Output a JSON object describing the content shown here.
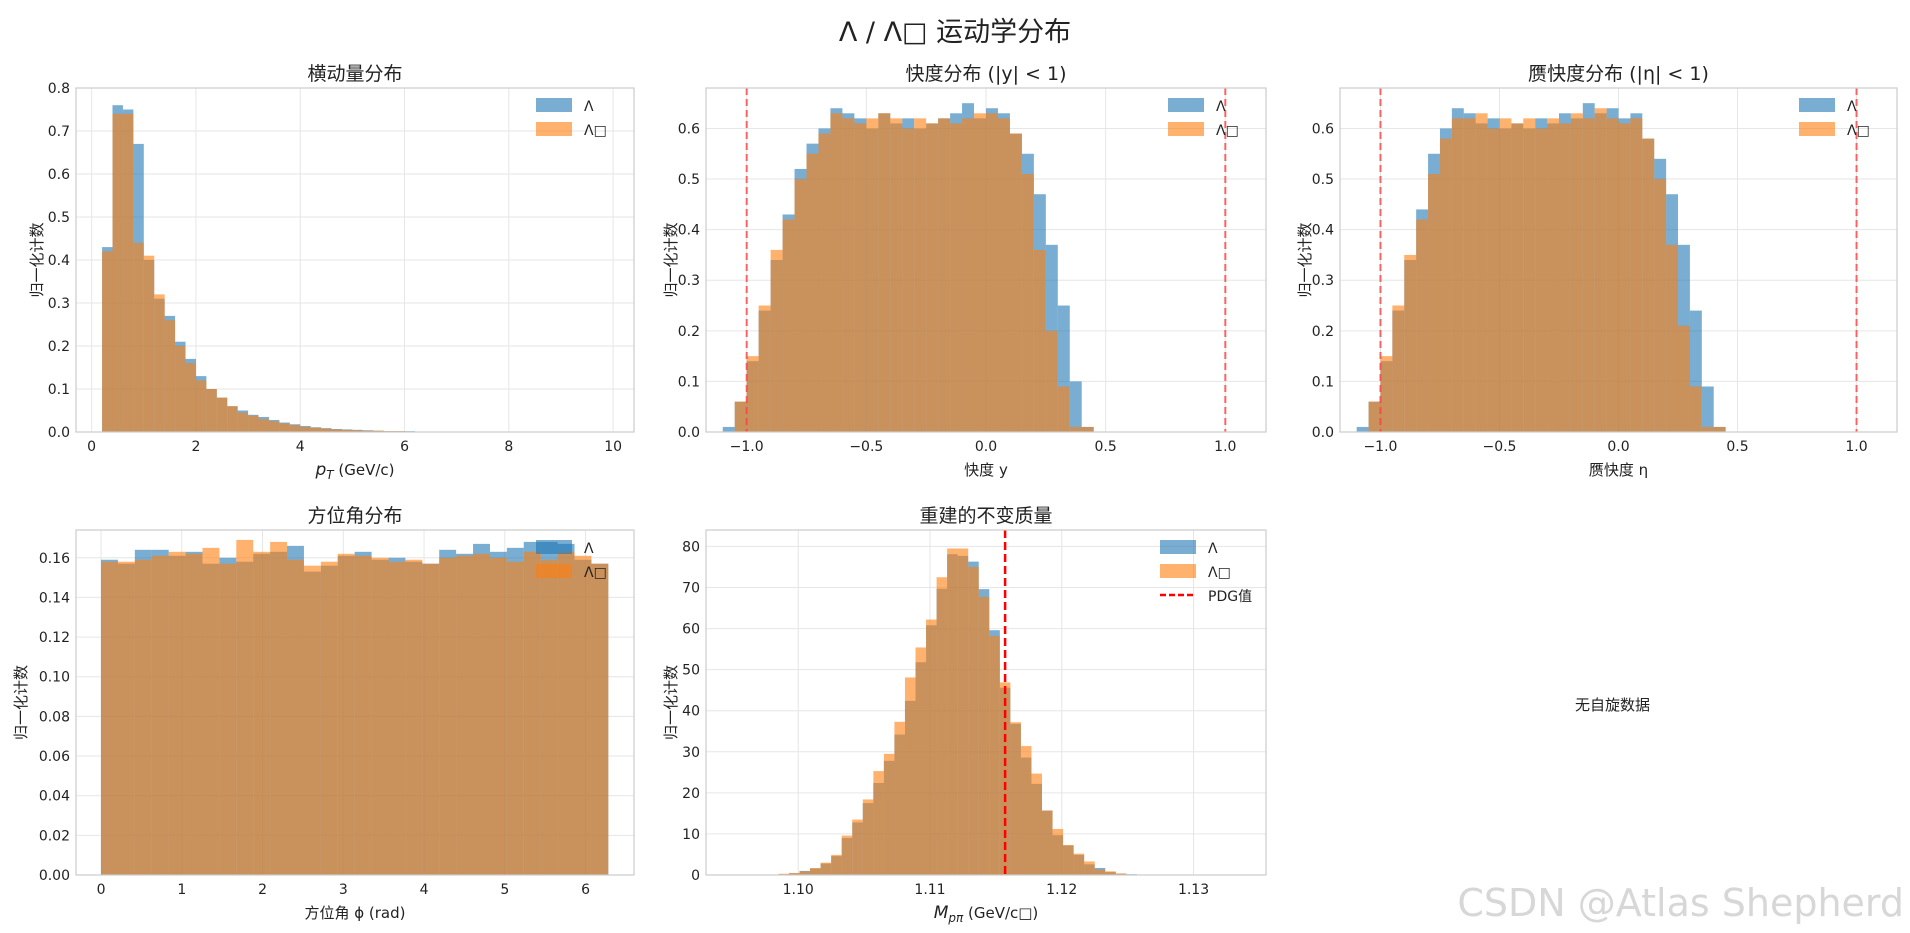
{
  "title": "Λ / Λ□ 运动学分布",
  "watermark": "CSDN @Atlas Shepherd",
  "empty_panel_text": "无自旋数据",
  "colors": {
    "lambda": "#1f77b4",
    "antilambda": "#ff7f0e",
    "pdg": "#ff0000",
    "cut": "#ff4040"
  },
  "chart_data": [
    {
      "id": "pt",
      "type": "bar",
      "title": "横动量分布",
      "xlabel": "p_T (GeV/c)",
      "ylabel": "归一化计数",
      "xlim": [
        -0.3,
        10.4
      ],
      "ylim": [
        0,
        0.8
      ],
      "xticks": [
        0,
        2,
        4,
        6,
        8,
        10
      ],
      "yticks": [
        0.0,
        0.1,
        0.2,
        0.3,
        0.4,
        0.5,
        0.6,
        0.7,
        0.8
      ],
      "ytick_labels": [
        "0.0",
        "0.1",
        "0.2",
        "0.3",
        "0.4",
        "0.5",
        "0.6",
        "0.7",
        "0.8"
      ],
      "bin_start": 0.2,
      "bin_width": 0.2,
      "legend": [
        "Λ",
        "Λ□"
      ],
      "series": [
        {
          "name": "Λ",
          "values": [
            0.43,
            0.76,
            0.75,
            0.67,
            0.4,
            0.31,
            0.27,
            0.21,
            0.17,
            0.13,
            0.1,
            0.08,
            0.06,
            0.05,
            0.04,
            0.035,
            0.028,
            0.022,
            0.018,
            0.014,
            0.011,
            0.009,
            0.007,
            0.006,
            0.005,
            0.004,
            0.003,
            0.002,
            0.002,
            0.002
          ]
        },
        {
          "name": "Λ□",
          "values": [
            0.42,
            0.74,
            0.74,
            0.44,
            0.41,
            0.32,
            0.26,
            0.2,
            0.16,
            0.12,
            0.1,
            0.08,
            0.06,
            0.045,
            0.038,
            0.03,
            0.025,
            0.02,
            0.016,
            0.012,
            0.01,
            0.008,
            0.006,
            0.005,
            0.004,
            0.003,
            0.003,
            0.002,
            0.002,
            0.001
          ]
        }
      ]
    },
    {
      "id": "y",
      "type": "bar",
      "title": "快度分布 (|y| < 1)",
      "xlabel": "快度 y",
      "ylabel": "归一化计数",
      "xlim": [
        -1.17,
        1.17
      ],
      "ylim": [
        0,
        0.68
      ],
      "xticks": [
        -1.0,
        -0.5,
        0.0,
        0.5,
        1.0
      ],
      "xtick_labels": [
        "−1.0",
        "−0.5",
        "0.0",
        "0.5",
        "1.0"
      ],
      "yticks": [
        0.0,
        0.1,
        0.2,
        0.3,
        0.4,
        0.5,
        0.6
      ],
      "ytick_labels": [
        "0.0",
        "0.1",
        "0.2",
        "0.3",
        "0.4",
        "0.5",
        "0.6"
      ],
      "bin_start": -1.1,
      "bin_width": 0.05,
      "cut_lines": [
        -1.0,
        1.0
      ],
      "legend": [
        "Λ",
        "Λ□"
      ],
      "series": [
        {
          "name": "Λ",
          "values": [
            0.01,
            0.06,
            0.14,
            0.24,
            0.34,
            0.43,
            0.52,
            0.57,
            0.6,
            0.64,
            0.63,
            0.62,
            0.6,
            0.63,
            0.61,
            0.62,
            0.6,
            0.61,
            0.62,
            0.63,
            0.65,
            0.62,
            0.64,
            0.63,
            0.59,
            0.55,
            0.47,
            0.37,
            0.25,
            0.1,
            0.01,
            0.0
          ]
        },
        {
          "name": "Λ□",
          "values": [
            0.0,
            0.06,
            0.15,
            0.25,
            0.36,
            0.42,
            0.5,
            0.55,
            0.59,
            0.63,
            0.62,
            0.61,
            0.62,
            0.63,
            0.62,
            0.6,
            0.62,
            0.61,
            0.62,
            0.61,
            0.62,
            0.63,
            0.63,
            0.62,
            0.59,
            0.51,
            0.36,
            0.2,
            0.09,
            0.01,
            0.01,
            0.0
          ]
        }
      ]
    },
    {
      "id": "eta",
      "type": "bar",
      "title": "赝快度分布 (|η| < 1)",
      "xlabel": "赝快度 η",
      "ylabel": "归一化计数",
      "xlim": [
        -1.17,
        1.17
      ],
      "ylim": [
        0,
        0.68
      ],
      "xticks": [
        -1.0,
        -0.5,
        0.0,
        0.5,
        1.0
      ],
      "xtick_labels": [
        "−1.0",
        "−0.5",
        "0.0",
        "0.5",
        "1.0"
      ],
      "yticks": [
        0.0,
        0.1,
        0.2,
        0.3,
        0.4,
        0.5,
        0.6
      ],
      "ytick_labels": [
        "0.0",
        "0.1",
        "0.2",
        "0.3",
        "0.4",
        "0.5",
        "0.6"
      ],
      "bin_start": -1.1,
      "bin_width": 0.05,
      "cut_lines": [
        -1.0,
        1.0
      ],
      "legend": [
        "Λ",
        "Λ□"
      ],
      "series": [
        {
          "name": "Λ",
          "values": [
            0.01,
            0.06,
            0.14,
            0.24,
            0.34,
            0.44,
            0.55,
            0.6,
            0.64,
            0.63,
            0.61,
            0.62,
            0.6,
            0.61,
            0.6,
            0.62,
            0.61,
            0.63,
            0.62,
            0.65,
            0.63,
            0.64,
            0.62,
            0.63,
            0.58,
            0.54,
            0.47,
            0.37,
            0.24,
            0.09,
            0.01,
            0.0
          ]
        },
        {
          "name": "Λ□",
          "values": [
            0.0,
            0.06,
            0.15,
            0.25,
            0.35,
            0.42,
            0.51,
            0.58,
            0.62,
            0.62,
            0.63,
            0.6,
            0.62,
            0.61,
            0.62,
            0.6,
            0.62,
            0.61,
            0.63,
            0.62,
            0.64,
            0.62,
            0.61,
            0.62,
            0.58,
            0.5,
            0.37,
            0.21,
            0.09,
            0.01,
            0.01,
            0.0
          ]
        }
      ]
    },
    {
      "id": "phi",
      "type": "bar",
      "title": "方位角分布",
      "xlabel": "方位角 ϕ (rad)",
      "ylabel": "归一化计数",
      "xlim": [
        -0.31,
        6.6
      ],
      "ylim": [
        0,
        0.174
      ],
      "xticks": [
        0,
        1,
        2,
        3,
        4,
        5,
        6
      ],
      "yticks": [
        0.0,
        0.02,
        0.04,
        0.06,
        0.08,
        0.1,
        0.12,
        0.14,
        0.16
      ],
      "ytick_labels": [
        "0.00",
        "0.02",
        "0.04",
        "0.06",
        "0.08",
        "0.10",
        "0.12",
        "0.14",
        "0.16"
      ],
      "bin_start": 0.0,
      "bin_width": 0.2094,
      "legend": [
        "Λ",
        "Λ□"
      ],
      "series": [
        {
          "name": "Λ",
          "values": [
            0.159,
            0.157,
            0.164,
            0.164,
            0.161,
            0.163,
            0.157,
            0.16,
            0.158,
            0.162,
            0.163,
            0.166,
            0.153,
            0.156,
            0.161,
            0.163,
            0.159,
            0.16,
            0.158,
            0.157,
            0.164,
            0.162,
            0.167,
            0.163,
            0.165,
            0.168,
            0.168,
            0.167,
            0.159,
            0.157
          ]
        },
        {
          "name": "Λ□",
          "values": [
            0.158,
            0.158,
            0.159,
            0.161,
            0.163,
            0.162,
            0.165,
            0.157,
            0.169,
            0.163,
            0.168,
            0.159,
            0.156,
            0.158,
            0.162,
            0.161,
            0.16,
            0.158,
            0.159,
            0.157,
            0.16,
            0.161,
            0.162,
            0.16,
            0.158,
            0.163,
            0.159,
            0.163,
            0.161,
            0.157
          ]
        }
      ]
    },
    {
      "id": "mass",
      "type": "bar",
      "title": "重建的不变质量",
      "xlabel": "M_pπ (GeV/c□)",
      "ylabel": "归一化计数",
      "xlim": [
        1.093,
        1.1355
      ],
      "ylim": [
        0,
        84
      ],
      "xticks": [
        1.1,
        1.11,
        1.12,
        1.13
      ],
      "xtick_labels": [
        "1.10",
        "1.11",
        "1.12",
        "1.13"
      ],
      "yticks": [
        0,
        10,
        20,
        30,
        40,
        50,
        60,
        70,
        80
      ],
      "ytick_labels": [
        "0",
        "10",
        "20",
        "30",
        "40",
        "50",
        "60",
        "70",
        "80"
      ],
      "bin_start": 1.0985,
      "bin_width": 0.0008,
      "pdg_line": 1.1157,
      "legend": [
        "Λ",
        "Λ□",
        "PDG值"
      ],
      "series": [
        {
          "name": "Λ",
          "values": [
            0.2,
            0.4,
            1.0,
            1.6,
            2.8,
            4.6,
            9.0,
            12.8,
            17.5,
            22.4,
            27.8,
            34.2,
            42.4,
            51.8,
            60.8,
            69.7,
            78.1,
            77.7,
            76.3,
            69.6,
            59.6,
            45.6,
            36.8,
            28.6,
            22.2,
            15.7,
            9.7,
            7.2,
            4.9,
            2.6,
            1.7,
            0.7,
            0.3,
            0.2
          ]
        },
        {
          "name": "Λ□",
          "values": [
            0.3,
            0.5,
            0.9,
            1.7,
            3.0,
            4.9,
            9.6,
            13.5,
            18.4,
            25.3,
            29.5,
            37.3,
            48.1,
            55.4,
            62.2,
            72.5,
            79.5,
            79.5,
            75.0,
            67.7,
            58.2,
            46.9,
            37.2,
            31.4,
            24.7,
            15.7,
            11.2,
            7.3,
            5.2,
            3.3,
            1.3,
            0.9,
            0.4,
            0.1
          ]
        }
      ]
    }
  ]
}
